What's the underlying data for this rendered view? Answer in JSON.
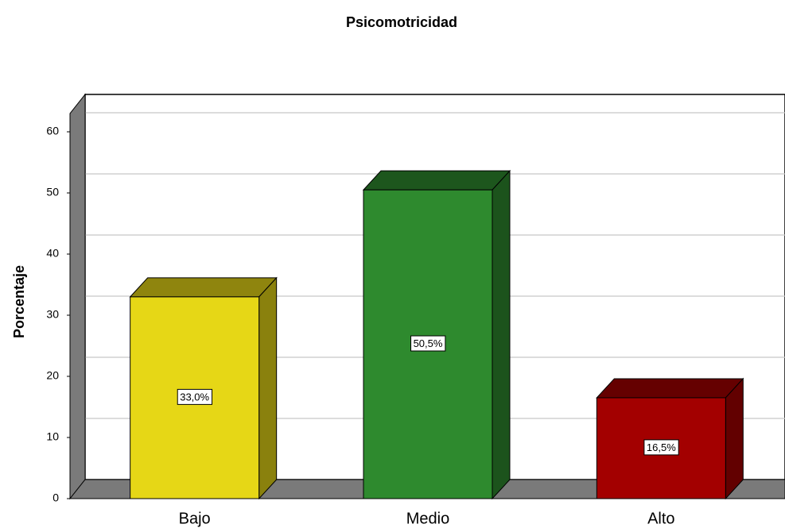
{
  "chart_data": {
    "type": "bar3d",
    "title": "Psicomotricidad",
    "y_label": "Porcentaje",
    "categories": [
      "Bajo",
      "Medio",
      "Alto"
    ],
    "values": [
      33.0,
      50.5,
      16.5
    ],
    "value_labels": [
      "33,0%",
      "50,5%",
      "16,5%"
    ],
    "colors": [
      "#e6d716",
      "#2e8a2e",
      "#a30000"
    ],
    "ylim": [
      0,
      63
    ],
    "yticks": [
      0,
      10,
      20,
      30,
      40,
      50,
      60
    ],
    "grid": true
  }
}
